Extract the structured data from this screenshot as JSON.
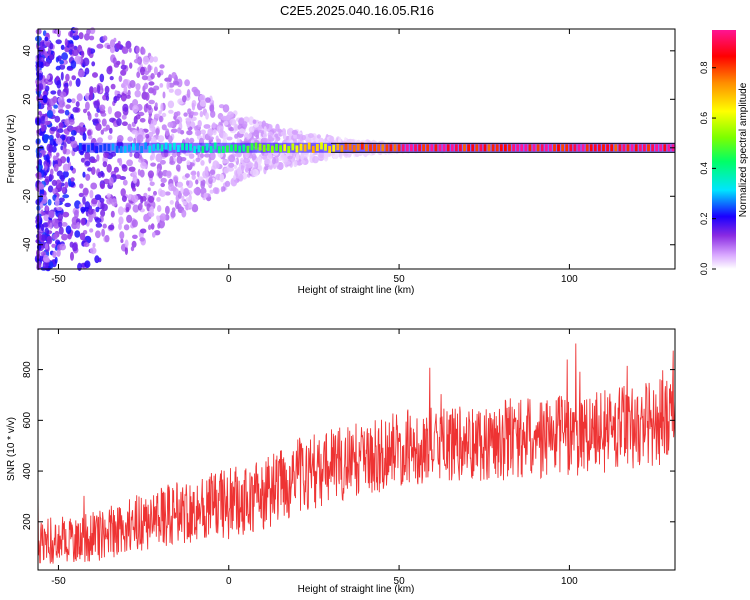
{
  "title": "C2E5.2025.040.16.05.R16",
  "chart_data": [
    {
      "type": "heatmap",
      "xlabel": "Height of straight line (km)",
      "ylabel": "Frequency (Hz)",
      "xlim": [
        -56,
        131
      ],
      "ylim": [
        -50,
        49
      ],
      "xticks": [
        -50,
        0,
        50,
        100
      ],
      "yticks": [
        -40,
        -20,
        0,
        20,
        40
      ],
      "ridge_frequency_hz": 0,
      "colorbar": {
        "label": "Normalized spectral amplitude",
        "range": [
          0.0,
          0.95
        ],
        "ticks": [
          0.0,
          0.2,
          0.4,
          0.6,
          0.8
        ],
        "tick_labels": [
          "0.0",
          "0.2",
          "0.4",
          "0.6",
          "0.8"
        ]
      },
      "ridge_amplitude_profile": {
        "x": [
          -56,
          -45,
          -35,
          -25,
          -15,
          -5,
          5,
          15,
          25,
          35,
          50,
          75,
          100,
          131
        ],
        "amplitude": [
          0.15,
          0.22,
          0.26,
          0.3,
          0.36,
          0.4,
          0.46,
          0.55,
          0.68,
          0.8,
          0.88,
          0.9,
          0.9,
          0.9
        ]
      },
      "scatter_density": {
        "x": [
          -56,
          -45,
          -35,
          -25,
          -15,
          -5,
          5,
          15,
          25,
          35,
          50,
          75,
          100,
          131
        ],
        "spread_hz": [
          50,
          50,
          48,
          40,
          30,
          20,
          12,
          8,
          5,
          3,
          1,
          0.5,
          0.3,
          0.3
        ],
        "amplitude": [
          0.18,
          0.16,
          0.13,
          0.1,
          0.08,
          0.07,
          0.06,
          0.05,
          0.04,
          0.03,
          0.02,
          0.01,
          0.01,
          0.01
        ]
      }
    },
    {
      "type": "line",
      "xlabel": "Height of straight line (km)",
      "ylabel": "SNR (10 * v/v)",
      "xlim": [
        -56,
        131
      ],
      "ylim": [
        10,
        960
      ],
      "xticks": [
        -50,
        0,
        50,
        100
      ],
      "yticks": [
        200,
        400,
        600,
        800
      ],
      "color": "#ee3333",
      "trend": {
        "x": [
          -56,
          -40,
          -30,
          -20,
          -10,
          0,
          10,
          20,
          30,
          40,
          50,
          60,
          70,
          80,
          90,
          100,
          110,
          120,
          131
        ],
        "mean": [
          120,
          140,
          180,
          220,
          250,
          270,
          300,
          380,
          420,
          450,
          490,
          500,
          510,
          520,
          530,
          540,
          560,
          580,
          600
        ],
        "spread": [
          90,
          100,
          110,
          120,
          130,
          140,
          150,
          150,
          150,
          150,
          150,
          150,
          150,
          160,
          160,
          160,
          170,
          170,
          170
        ]
      }
    }
  ]
}
